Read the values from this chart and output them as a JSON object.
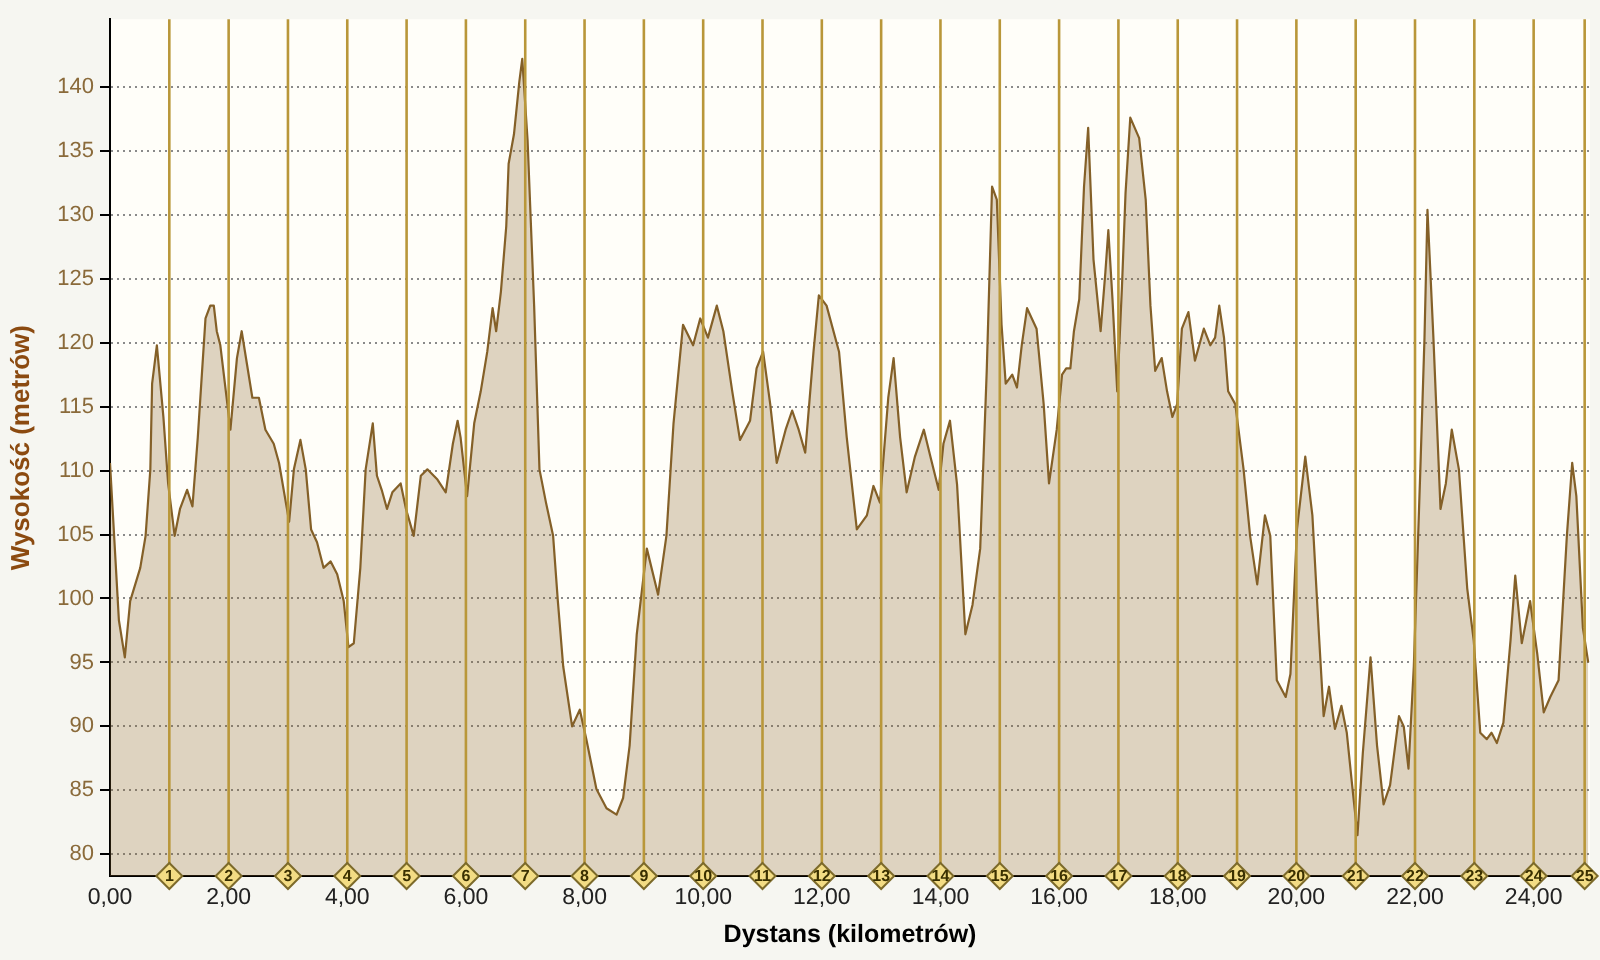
{
  "chart_data": {
    "type": "area",
    "xlabel": "Dystans (kilometrów)",
    "ylabel": "Wysokość (metrów)",
    "x": [
      0,
      0.15,
      0.25,
      0.34,
      0.51,
      0.6,
      0.68,
      0.71,
      0.79,
      0.9,
      0.98,
      1.09,
      1.18,
      1.3,
      1.39,
      1.48,
      1.61,
      1.69,
      1.75,
      1.8,
      1.86,
      2.03,
      2.14,
      2.22,
      2.31,
      2.4,
      2.51,
      2.62,
      2.76,
      2.85,
      3.02,
      3.1,
      3.21,
      3.3,
      3.39,
      3.49,
      3.6,
      3.72,
      3.83,
      3.94,
      4.02,
      4.11,
      4.22,
      4.31,
      4.43,
      4.5,
      4.58,
      4.67,
      4.76,
      4.9,
      4.99,
      5.12,
      5.24,
      5.35,
      5.52,
      5.66,
      5.78,
      5.86,
      5.91,
      6.02,
      6.14,
      6.25,
      6.36,
      6.45,
      6.51,
      6.59,
      6.68,
      6.72,
      6.81,
      6.9,
      6.95,
      7.04,
      7.15,
      7.24,
      7.35,
      7.47,
      7.55,
      7.64,
      7.79,
      7.92,
      8.03,
      8.2,
      8.37,
      8.54,
      8.65,
      8.76,
      8.88,
      9.05,
      9.24,
      9.38,
      9.5,
      9.66,
      9.83,
      9.95,
      10.08,
      10.23,
      10.34,
      10.49,
      10.62,
      10.79,
      10.9,
      11.01,
      11.13,
      11.24,
      11.39,
      11.5,
      11.61,
      11.72,
      11.86,
      11.95,
      12.08,
      12.29,
      12.42,
      12.59,
      12.76,
      12.87,
      12.98,
      13.12,
      13.21,
      13.32,
      13.43,
      13.57,
      13.72,
      13.83,
      13.97,
      14.05,
      14.16,
      14.28,
      14.42,
      14.54,
      14.67,
      14.78,
      14.87,
      14.95,
      15.03,
      15.1,
      15.21,
      15.29,
      15.37,
      15.46,
      15.62,
      15.74,
      15.83,
      15.96,
      16.05,
      16.12,
      16.19,
      16.25,
      16.34,
      16.42,
      16.49,
      16.58,
      16.7,
      16.78,
      16.83,
      16.9,
      16.98,
      17.06,
      17.12,
      17.2,
      17.35,
      17.46,
      17.54,
      17.62,
      17.73,
      17.82,
      17.91,
      17.99,
      18.07,
      18.18,
      18.29,
      18.44,
      18.55,
      18.63,
      18.7,
      18.78,
      18.85,
      18.97,
      19.11,
      19.22,
      19.34,
      19.47,
      19.56,
      19.67,
      19.82,
      19.9,
      20.01,
      20.15,
      20.27,
      20.38,
      20.46,
      20.55,
      20.65,
      20.76,
      20.85,
      20.94,
      21.03,
      21.12,
      21.25,
      21.36,
      21.47,
      21.58,
      21.73,
      21.81,
      21.89,
      21.98,
      22.09,
      22.16,
      22.21,
      22.31,
      22.43,
      22.52,
      22.62,
      22.74,
      22.88,
      22.99,
      23.1,
      23.21,
      23.29,
      23.38,
      23.49,
      23.61,
      23.69,
      23.8,
      23.94,
      24.06,
      24.17,
      24.28,
      24.42,
      24.56,
      24.65,
      24.72,
      24.83,
      24.92
    ],
    "values": [
      110.6,
      98.3,
      95.4,
      99.8,
      102.4,
      104.9,
      110.1,
      116.8,
      119.8,
      114.2,
      109,
      104.9,
      107,
      108.5,
      107.2,
      112.6,
      121.9,
      122.9,
      122.9,
      120.9,
      119.8,
      113.2,
      118.8,
      120.9,
      118.3,
      115.7,
      115.7,
      113.2,
      112.1,
      110.6,
      106,
      110.1,
      112.4,
      110.1,
      105.4,
      104.4,
      102.4,
      102.9,
      101.9,
      99.8,
      96.2,
      96.5,
      102.4,
      110.1,
      113.7,
      109.6,
      108.5,
      107,
      108.3,
      109,
      107,
      104.9,
      109.6,
      110.1,
      109.3,
      108.3,
      112.1,
      113.9,
      112.6,
      108,
      113.7,
      116.2,
      119.3,
      122.7,
      120.9,
      124,
      129.1,
      134,
      136.3,
      140.4,
      142.2,
      135.8,
      122.9,
      110.1,
      107.5,
      104.9,
      99.8,
      94.7,
      90,
      91.3,
      89,
      85.1,
      83.6,
      83.1,
      84.4,
      88.5,
      97.2,
      103.9,
      100.3,
      104.9,
      113.7,
      121.4,
      119.8,
      121.9,
      120.4,
      122.9,
      120.9,
      116.2,
      112.4,
      113.9,
      118,
      119.3,
      115.2,
      110.6,
      113.2,
      114.7,
      113.2,
      111.4,
      119.3,
      123.7,
      122.9,
      119.3,
      112.6,
      105.4,
      106.5,
      108.8,
      107.5,
      115.7,
      118.8,
      112.6,
      108.3,
      111.1,
      113.2,
      111.1,
      108.5,
      112.1,
      113.9,
      108.9,
      97.2,
      99.5,
      103.9,
      117.8,
      132.2,
      131.2,
      121.4,
      116.8,
      117.5,
      116.5,
      119.8,
      122.7,
      121.1,
      115.2,
      109,
      113.2,
      117.5,
      118,
      118,
      120.9,
      123.4,
      132.2,
      136.8,
      126.5,
      120.9,
      125.5,
      128.8,
      123.4,
      116.2,
      124.4,
      131.7,
      137.6,
      136,
      131.2,
      122.9,
      117.8,
      118.8,
      116.2,
      114.2,
      115.2,
      121.1,
      122.4,
      118.6,
      121.1,
      119.8,
      120.4,
      122.9,
      120.4,
      116.2,
      115.2,
      110.1,
      104.9,
      101.1,
      106.5,
      104.9,
      93.6,
      92.3,
      94.1,
      105.4,
      111.1,
      106.5,
      97.2,
      90.8,
      93.1,
      89.8,
      91.6,
      89.5,
      85.4,
      81.5,
      87.9,
      95.4,
      88.5,
      83.9,
      85.4,
      90.8,
      90,
      86.7,
      94.7,
      110.1,
      120.4,
      130.4,
      120.4,
      107,
      109,
      113.2,
      110.1,
      100.8,
      96.7,
      89.5,
      89,
      89.5,
      88.7,
      90.3,
      96.7,
      101.8,
      96.5,
      99.8,
      95.7,
      91.1,
      92.3,
      93.6,
      104.9,
      110.6,
      108,
      97.7,
      95
    ],
    "color": "#846028",
    "xlim": [
      0,
      24.95
    ],
    "ylim": [
      78.3,
      145.3
    ],
    "xticks": [
      {
        "value": 0,
        "label": "0,00"
      },
      {
        "value": 2,
        "label": "2,00"
      },
      {
        "value": 4,
        "label": "4,00"
      },
      {
        "value": 6,
        "label": "6,00"
      },
      {
        "value": 8,
        "label": "8,00"
      },
      {
        "value": 10,
        "label": "10,00"
      },
      {
        "value": 12,
        "label": "12,00"
      },
      {
        "value": 14,
        "label": "14,00"
      },
      {
        "value": 16,
        "label": "16,00"
      },
      {
        "value": 18,
        "label": "18,00"
      },
      {
        "value": 20,
        "label": "20,00"
      },
      {
        "value": 22,
        "label": "22,00"
      },
      {
        "value": 24,
        "label": "24,00"
      }
    ],
    "yticks": [
      80,
      85,
      90,
      95,
      100,
      105,
      110,
      115,
      120,
      125,
      130,
      135,
      140
    ],
    "grid": "y",
    "ref_lines": [
      {
        "axis": "x",
        "value": 1,
        "label": "1",
        "color": "#b9973a"
      },
      {
        "axis": "x",
        "value": 2,
        "label": "2",
        "color": "#b9973a"
      },
      {
        "axis": "x",
        "value": 3,
        "label": "3",
        "color": "#b9973a"
      },
      {
        "axis": "x",
        "value": 4,
        "label": "4",
        "color": "#b9973a"
      },
      {
        "axis": "x",
        "value": 5,
        "label": "5",
        "color": "#b9973a"
      },
      {
        "axis": "x",
        "value": 6,
        "label": "6",
        "color": "#b9973a"
      },
      {
        "axis": "x",
        "value": 7,
        "label": "7",
        "color": "#b9973a"
      },
      {
        "axis": "x",
        "value": 8,
        "label": "8",
        "color": "#b9973a"
      },
      {
        "axis": "x",
        "value": 9,
        "label": "9",
        "color": "#b9973a"
      },
      {
        "axis": "x",
        "value": 10,
        "label": "10",
        "color": "#b9973a"
      },
      {
        "axis": "x",
        "value": 11,
        "label": "11",
        "color": "#b9973a"
      },
      {
        "axis": "x",
        "value": 12,
        "label": "12",
        "color": "#b9973a"
      },
      {
        "axis": "x",
        "value": 13,
        "label": "13",
        "color": "#b9973a"
      },
      {
        "axis": "x",
        "value": 14,
        "label": "14",
        "color": "#b9973a"
      },
      {
        "axis": "x",
        "value": 15,
        "label": "15",
        "color": "#b9973a"
      },
      {
        "axis": "x",
        "value": 16,
        "label": "16",
        "color": "#b9973a"
      },
      {
        "axis": "x",
        "value": 17,
        "label": "17",
        "color": "#b9973a"
      },
      {
        "axis": "x",
        "value": 18,
        "label": "18",
        "color": "#b9973a"
      },
      {
        "axis": "x",
        "value": 19,
        "label": "19",
        "color": "#b9973a"
      },
      {
        "axis": "x",
        "value": 20,
        "label": "20",
        "color": "#b9973a"
      },
      {
        "axis": "x",
        "value": 21,
        "label": "21",
        "color": "#b9973a"
      },
      {
        "axis": "x",
        "value": 22,
        "label": "22",
        "color": "#b9973a"
      },
      {
        "axis": "x",
        "value": 23,
        "label": "23",
        "color": "#b9973a"
      },
      {
        "axis": "x",
        "value": 24,
        "label": "24",
        "color": "#b9973a"
      },
      {
        "axis": "x",
        "value": 24.86,
        "label": "25",
        "color": "#b9973a"
      }
    ]
  }
}
